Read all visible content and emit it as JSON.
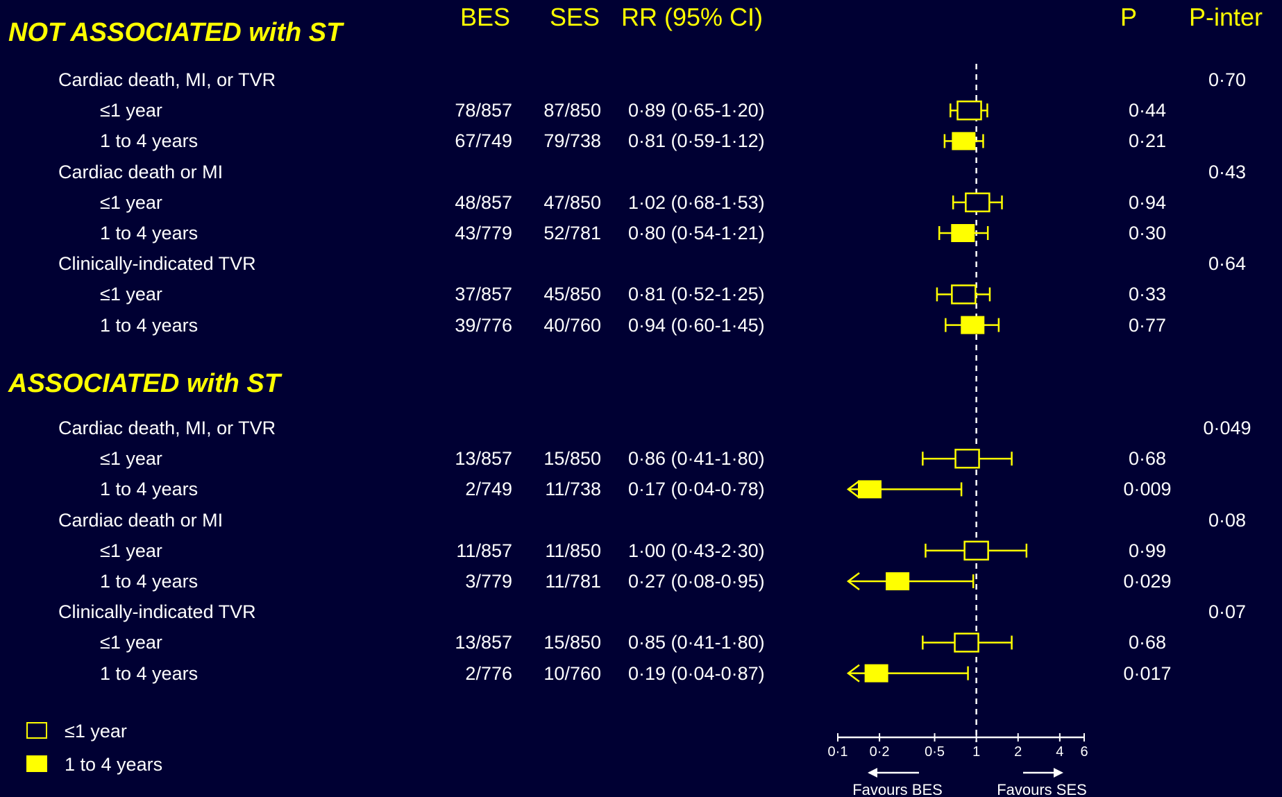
{
  "columns": {
    "bes": "BES",
    "ses": "SES",
    "rr": "RR (95% CI)",
    "p": "P",
    "p_inter": "P-inter"
  },
  "sections": [
    {
      "title": "NOT ASSOCIATED with ST",
      "outcomes": [
        {
          "label": "Cardiac death, MI, or TVR",
          "p_inter": "0·70",
          "periods": [
            {
              "label": "≤1 year",
              "bes": "78/857",
              "ses": "87/850",
              "rr_text": "0·89 (0·65-1·20)",
              "p": "0·44",
              "rr": 0.89,
              "lo": 0.65,
              "hi": 1.2,
              "filled": false
            },
            {
              "label": "1 to 4 years",
              "bes": "67/749",
              "ses": "79/738",
              "rr_text": "0·81 (0·59-1·12)",
              "p": "0·21",
              "rr": 0.81,
              "lo": 0.59,
              "hi": 1.12,
              "filled": true
            }
          ]
        },
        {
          "label": "Cardiac death or MI",
          "p_inter": "0·43",
          "periods": [
            {
              "label": "≤1 year",
              "bes": "48/857",
              "ses": "47/850",
              "rr_text": "1·02 (0·68-1·53)",
              "p": "0·94",
              "rr": 1.02,
              "lo": 0.68,
              "hi": 1.53,
              "filled": false
            },
            {
              "label": "1 to 4 years",
              "bes": "43/779",
              "ses": "52/781",
              "rr_text": "0·80 (0·54-1·21)",
              "p": "0·30",
              "rr": 0.8,
              "lo": 0.54,
              "hi": 1.21,
              "filled": true
            }
          ]
        },
        {
          "label": "Clinically-indicated TVR",
          "p_inter": "0·64",
          "periods": [
            {
              "label": "≤1 year",
              "bes": "37/857",
              "ses": "45/850",
              "rr_text": "0·81 (0·52-1·25)",
              "p": "0·33",
              "rr": 0.81,
              "lo": 0.52,
              "hi": 1.25,
              "filled": false
            },
            {
              "label": "1 to 4 years",
              "bes": "39/776",
              "ses": "40/760",
              "rr_text": "0·94 (0·60-1·45)",
              "p": "0·77",
              "rr": 0.94,
              "lo": 0.6,
              "hi": 1.45,
              "filled": true
            }
          ]
        }
      ]
    },
    {
      "title": "ASSOCIATED with ST",
      "outcomes": [
        {
          "label": "Cardiac death, MI, or TVR",
          "p_inter": "0·049",
          "periods": [
            {
              "label": "≤1 year",
              "bes": "13/857",
              "ses": "15/850",
              "rr_text": "0·86 (0·41-1·80)",
              "p": "0·68",
              "rr": 0.86,
              "lo": 0.41,
              "hi": 1.8,
              "filled": false
            },
            {
              "label": "1 to 4 years",
              "bes": "2/749",
              "ses": "11/738",
              "rr_text": "0·17 (0·04-0·78)",
              "p": "0·009",
              "rr": 0.17,
              "lo": 0.04,
              "hi": 0.78,
              "filled": true
            }
          ]
        },
        {
          "label": "Cardiac death or MI",
          "p_inter": "0·08",
          "periods": [
            {
              "label": "≤1 year",
              "bes": "11/857",
              "ses": "11/850",
              "rr_text": "1·00 (0·43-2·30)",
              "p": "0·99",
              "rr": 1.0,
              "lo": 0.43,
              "hi": 2.3,
              "filled": false
            },
            {
              "label": "1 to 4 years",
              "bes": "3/779",
              "ses": "11/781",
              "rr_text": "0·27 (0·08-0·95)",
              "p": "0·029",
              "rr": 0.27,
              "lo": 0.08,
              "hi": 0.95,
              "filled": true
            }
          ]
        },
        {
          "label": "Clinically-indicated TVR",
          "p_inter": "0·07",
          "periods": [
            {
              "label": "≤1 year",
              "bes": "13/857",
              "ses": "15/850",
              "rr_text": "0·85 (0·41-1·80)",
              "p": "0·68",
              "rr": 0.85,
              "lo": 0.41,
              "hi": 1.8,
              "filled": false
            },
            {
              "label": "1 to 4 years",
              "bes": "2/776",
              "ses": "10/760",
              "rr_text": "0·19 (0·04-0·87)",
              "p": "0·017",
              "rr": 0.19,
              "lo": 0.04,
              "hi": 0.87,
              "filled": true
            }
          ]
        }
      ]
    }
  ],
  "legend": [
    {
      "label": "≤1 year",
      "filled": false
    },
    {
      "label": "1 to 4 years",
      "filled": true
    }
  ],
  "axis": {
    "ticks": [
      {
        "value": 0.1,
        "label": "0·1"
      },
      {
        "value": 0.2,
        "label": "0·2"
      },
      {
        "value": 0.5,
        "label": "0·5"
      },
      {
        "value": 1,
        "label": "1"
      },
      {
        "value": 2,
        "label": "2"
      },
      {
        "value": 4,
        "label": "4"
      },
      {
        "value": 6,
        "label": "6"
      }
    ],
    "left_label": "Favours BES",
    "right_label": "Favours SES"
  },
  "chart_data": {
    "type": "forest",
    "scale": "log",
    "reference_line": 1,
    "xlim": [
      0.1,
      6
    ],
    "xticks": [
      "0·1",
      "0·2",
      "0·5",
      "1",
      "2",
      "4",
      "6"
    ],
    "xlabel_left": "Favours BES",
    "xlabel_right": "Favours SES"
  },
  "colors": {
    "background": "#000033",
    "accent": "#ffff00",
    "text": "#ffffff"
  }
}
